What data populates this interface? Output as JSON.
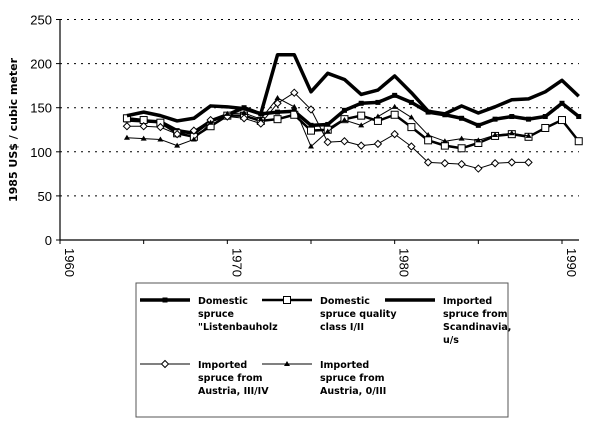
{
  "chart_data": {
    "type": "line",
    "title": "",
    "xlabel": "",
    "ylabel": "1985 US$ / cubic meter",
    "xlim": [
      1960,
      1991
    ],
    "ylim": [
      0,
      250
    ],
    "x_ticks": [
      "1960",
      "1970",
      "1980",
      "1990"
    ],
    "y_ticks": [
      "0",
      "50",
      "100",
      "150",
      "200",
      "250"
    ],
    "grid": "horizontal dotted",
    "legend_position": "bottom",
    "series": [
      {
        "name": "Domestic spruce \"Listenbauholz",
        "legend_lines": [
          "Domestic",
          "spruce",
          "\"Listenbauholz"
        ],
        "marker": "filled-square",
        "width": 3.5,
        "color": "#000000",
        "x": [
          1964,
          1965,
          1966,
          1967,
          1968,
          1969,
          1970,
          1971,
          1972,
          1973,
          1974,
          1975,
          1976,
          1977,
          1978,
          1979,
          1980,
          1981,
          1982,
          1983,
          1984,
          1985,
          1986,
          1987,
          1988,
          1989,
          1990,
          1991
        ],
        "values": [
          136,
          135,
          134,
          124,
          121,
          135,
          142,
          150,
          143,
          145,
          146,
          130,
          131,
          147,
          155,
          156,
          164,
          156,
          145,
          142,
          138,
          130,
          137,
          140,
          137,
          140,
          155,
          140
        ]
      },
      {
        "name": "Domestic spruce quality class I/II",
        "legend_lines": [
          "Domestic",
          "spruce quality",
          "class I/II"
        ],
        "marker": "open-square",
        "width": 2.5,
        "color": "#000000",
        "x": [
          1964,
          1965,
          1966,
          1967,
          1968,
          1969,
          1970,
          1971,
          1972,
          1973,
          1974,
          1975,
          1976,
          1977,
          1978,
          1979,
          1980,
          1981,
          1982,
          1983,
          1984,
          1985,
          1986,
          1987,
          1988,
          1989,
          1990,
          1991
        ],
        "values": [
          138,
          136,
          133,
          121,
          117,
          129,
          141,
          141,
          135,
          137,
          142,
          124,
          125,
          137,
          141,
          135,
          142,
          128,
          113,
          107,
          104,
          110,
          118,
          120,
          117,
          127,
          136,
          112
        ]
      },
      {
        "name": "Imported spruce from Scandinavia, u/s",
        "legend_lines": [
          "Imported",
          "spruce from",
          "Scandinavia,",
          "u/s"
        ],
        "marker": "none",
        "width": 3.5,
        "color": "#000000",
        "x": [
          1964,
          1965,
          1966,
          1967,
          1968,
          1969,
          1970,
          1971,
          1972,
          1973,
          1974,
          1975,
          1976,
          1977,
          1978,
          1979,
          1980,
          1981,
          1982,
          1983,
          1984,
          1985,
          1986,
          1987,
          1988,
          1989,
          1990,
          1991
        ],
        "values": [
          141,
          145,
          141,
          135,
          138,
          152,
          151,
          149,
          143,
          210,
          210,
          168,
          189,
          182,
          165,
          170,
          186,
          167,
          146,
          143,
          152,
          144,
          151,
          159,
          160,
          168,
          181,
          163
        ]
      },
      {
        "name": "Imported spruce from Austria, III/IV",
        "legend_lines": [
          "Imported",
          "spruce from",
          "Austria, III/IV"
        ],
        "marker": "open-diamond",
        "width": 1,
        "color": "#000000",
        "x": [
          1964,
          1965,
          1966,
          1967,
          1968,
          1969,
          1970,
          1971,
          1972,
          1973,
          1974,
          1975,
          1976,
          1977,
          1978,
          1979,
          1980,
          1981,
          1982,
          1983,
          1984,
          1985,
          1986,
          1987,
          1988
        ],
        "values": [
          129,
          129,
          128,
          120,
          124,
          136,
          140,
          138,
          132,
          155,
          167,
          148,
          111,
          112,
          107,
          109,
          120,
          106,
          88,
          87,
          86,
          81,
          87,
          88,
          88
        ]
      },
      {
        "name": "Imported spruce from Austria, 0/III",
        "legend_lines": [
          "Imported",
          "spruce from",
          "Austria, 0/III"
        ],
        "marker": "filled-triangle",
        "width": 1,
        "color": "#000000",
        "x": [
          1964,
          1965,
          1966,
          1967,
          1968,
          1969,
          1970,
          1971,
          1972,
          1973,
          1974,
          1975,
          1976,
          1977,
          1978,
          1979,
          1980,
          1981,
          1982,
          1983,
          1984,
          1985,
          1986,
          1987,
          1988
        ],
        "values": [
          116,
          115,
          114,
          107,
          114,
          133,
          143,
          144,
          137,
          161,
          151,
          106,
          123,
          136,
          130,
          140,
          151,
          139,
          119,
          112,
          115,
          113,
          119,
          121,
          118
        ]
      }
    ]
  }
}
